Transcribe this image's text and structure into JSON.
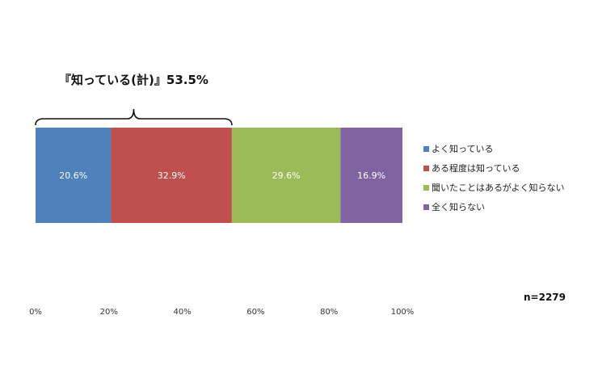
{
  "chart_data": {
    "type": "bar",
    "orientation": "horizontal",
    "stacked": true,
    "categories": [
      ""
    ],
    "series": [
      {
        "name": "よく知っている",
        "values": [
          20.6
        ],
        "label": "20.6%",
        "color": "#4F81BD"
      },
      {
        "name": "ある程度は知っている",
        "values": [
          32.9
        ],
        "label": "32.9%",
        "color": "#C0504D"
      },
      {
        "name": "聞いたことはあるがよく知らない",
        "values": [
          29.6
        ],
        "label": "29.6%",
        "color": "#9BBB59"
      },
      {
        "name": "全く知らない",
        "values": [
          16.9
        ],
        "label": "16.9%",
        "color": "#8064A2"
      }
    ],
    "xlim": [
      0,
      100
    ],
    "xticks": [
      "0%",
      "20%",
      "40%",
      "60%",
      "80%",
      "100%"
    ],
    "grid": false,
    "legend": "right",
    "annotation": {
      "text": "『知っている(計)』53.5%",
      "value": 53.5
    },
    "sample_size": "n=2279"
  }
}
